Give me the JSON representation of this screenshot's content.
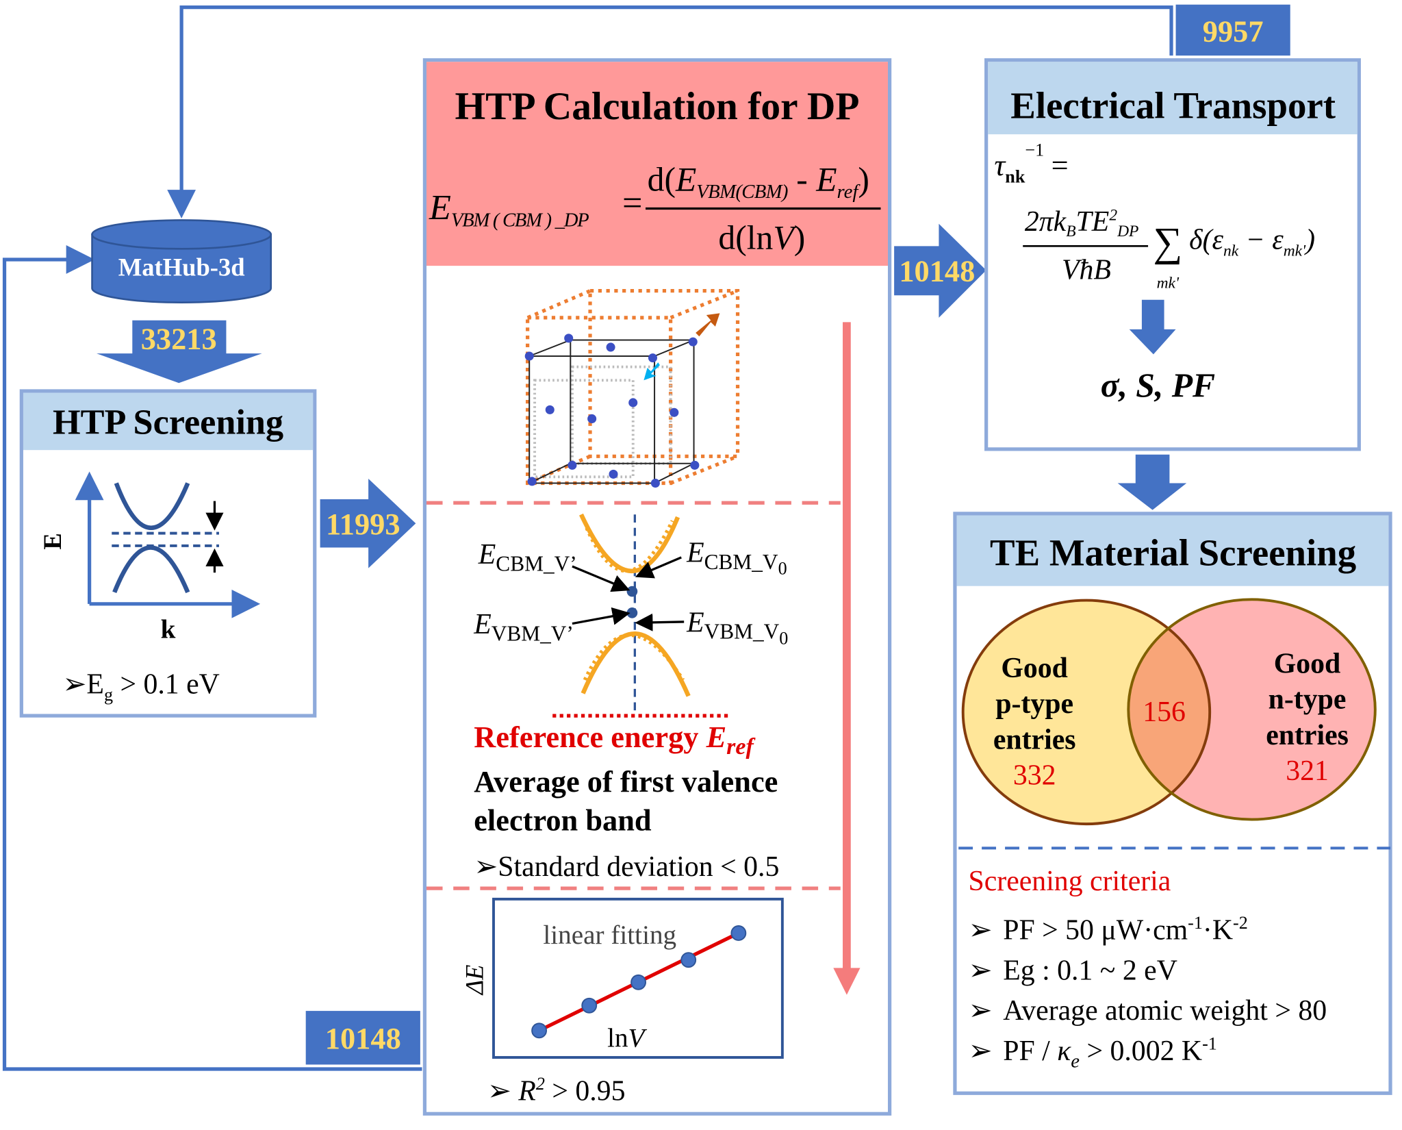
{
  "colors": {
    "flow_blue": "#4472c4",
    "box_border": "#8eaadb",
    "header_blue": "#bdd7ee",
    "header_pink": "#ff9999",
    "badge_text": "#ffd966",
    "band_orange": "#f5a623",
    "red": "#e00000"
  },
  "database": {
    "label": "MatHub-3d"
  },
  "counts": {
    "top_loop": "9957",
    "to_screening": "33213",
    "to_dp": "11993",
    "to_transport": "10148",
    "bottom_loop": "10148"
  },
  "htp_screening": {
    "title": "HTP  Screening",
    "axis_y": "E",
    "axis_x": "k",
    "criterion_prefix": "➢E",
    "criterion_sub": "g",
    "criterion_rest": " > 0.1 eV"
  },
  "dp_calc": {
    "title": "HTP Calculation for DP",
    "formula": {
      "lhs": "E",
      "lhs_sub": "VBM ( CBM ) _DP",
      "eq": "=",
      "num_a": "d(",
      "num_E1": "E",
      "num_sub1": "VBM(CBM)",
      "num_minus": " - ",
      "num_E2": "E",
      "num_sub2": "ref",
      "num_close": ")",
      "den": "d(ln",
      "den_V": "V",
      "den_close": ")"
    },
    "labels": {
      "cbm_v_prime": "E",
      "cbm_v_prime_sub": "CBM_V’",
      "cbm_v0": "E",
      "cbm_v0_sub": "CBM_V",
      "cbm_v0_sub2": "0",
      "vbm_v_prime": "E",
      "vbm_v_prime_sub": "VBM_V’",
      "vbm_v0": "E",
      "vbm_v0_sub": "VBM_V",
      "vbm_v0_sub2": "0"
    },
    "reference": {
      "text": "Reference energy ",
      "symbol": "E",
      "symbol_sub": "ref"
    },
    "reference_desc_line1": "Average of first valence",
    "reference_desc_line2": "electron band",
    "std_criterion": "➢Standard deviation < 0.5",
    "fit": {
      "title": "linear fitting",
      "ylabel": "ΔE",
      "xlabel_a": "ln",
      "xlabel_b": "V"
    },
    "r2_criterion": {
      "prefix": "➢ ",
      "R": "R",
      "sup": "2",
      "rest": " > 0.95"
    }
  },
  "electrical_transport": {
    "title": "Electrical Transport",
    "formula": {
      "tau": "τ",
      "tau_sub": "nk",
      "tau_sup": "−1",
      "eq": "=",
      "num": "2πk",
      "num_sub": "B",
      "num_T": "TE",
      "num_sup": "2",
      "num_sub2": "DP",
      "den": "VħB",
      "sigma": "∑",
      "sum_sub": "mk'",
      "delta": "δ(ε",
      "d_sub1": "nk",
      "minus": " − ε",
      "d_sub2": "mk'",
      "close": ")"
    },
    "outputs": "σ, S, PF"
  },
  "te_screening": {
    "title": "TE Material Screening",
    "p_type": {
      "line1": "Good",
      "line2": "p-type",
      "line3": "entries",
      "count": "332"
    },
    "n_type": {
      "line1": "Good",
      "line2": "n-type",
      "line3": "entries",
      "count": "321"
    },
    "overlap": "156",
    "criteria_title": "Screening criteria",
    "criteria": [
      {
        "bullet": "➢",
        "text": "PF > 50 μW·cm",
        "sup1": "-1",
        "mid": "·K",
        "sup2": "-2"
      },
      {
        "bullet": "➢",
        "text": "Eg : 0.1 ~ 2 eV"
      },
      {
        "bullet": "➢",
        "text": "Average atomic weight > 80"
      },
      {
        "bullet": "➢",
        "text": "PF / ",
        "kappa": "κ",
        "kappa_sub": "e",
        "rest": " > 0.002 K",
        "sup": "-1"
      }
    ]
  }
}
